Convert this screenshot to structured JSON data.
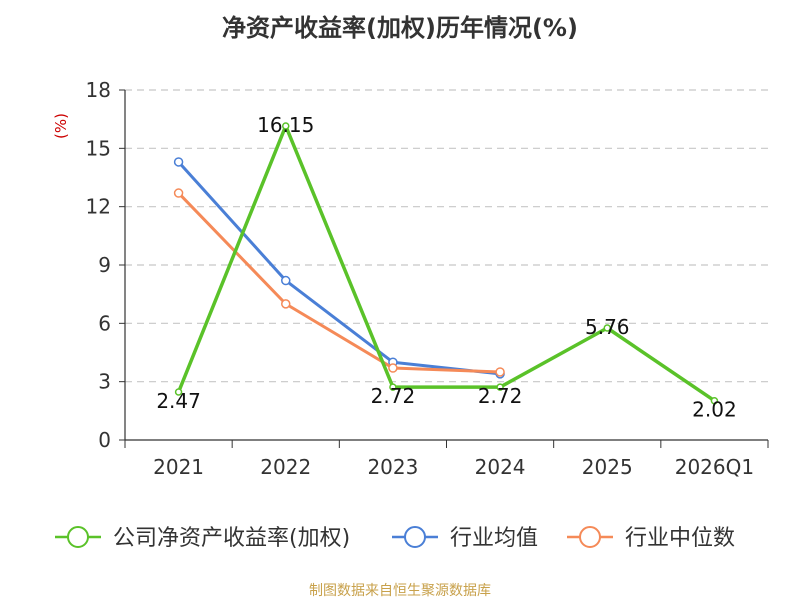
{
  "chart_data": {
    "type": "line",
    "title": "净资产收益率(加权)历年情况(%)",
    "ylabel": "(%)",
    "ylim": [
      0,
      18
    ],
    "yticks": [
      0,
      3,
      6,
      9,
      12,
      15,
      18
    ],
    "categories": [
      "2021",
      "2022",
      "2023",
      "2024",
      "2025",
      "2026Q1"
    ],
    "series": [
      {
        "name": "公司净资产收益率(加权)",
        "color": "#5ac229",
        "values": [
          2.47,
          16.15,
          2.72,
          2.72,
          5.76,
          2.02
        ],
        "labels": [
          "2.47",
          "16.15",
          "2.72",
          "2.72",
          "5.76",
          "2.02"
        ]
      },
      {
        "name": "行业均值",
        "color": "#4a7fd6",
        "values": [
          14.3,
          8.2,
          4.0,
          3.4,
          null,
          null
        ]
      },
      {
        "name": "行业中位数",
        "color": "#f58a58",
        "values": [
          12.7,
          7.0,
          3.7,
          3.5,
          null,
          null
        ]
      }
    ],
    "source": "制图数据来自恒生聚源数据库",
    "ylabel_color": "#cc0000"
  }
}
